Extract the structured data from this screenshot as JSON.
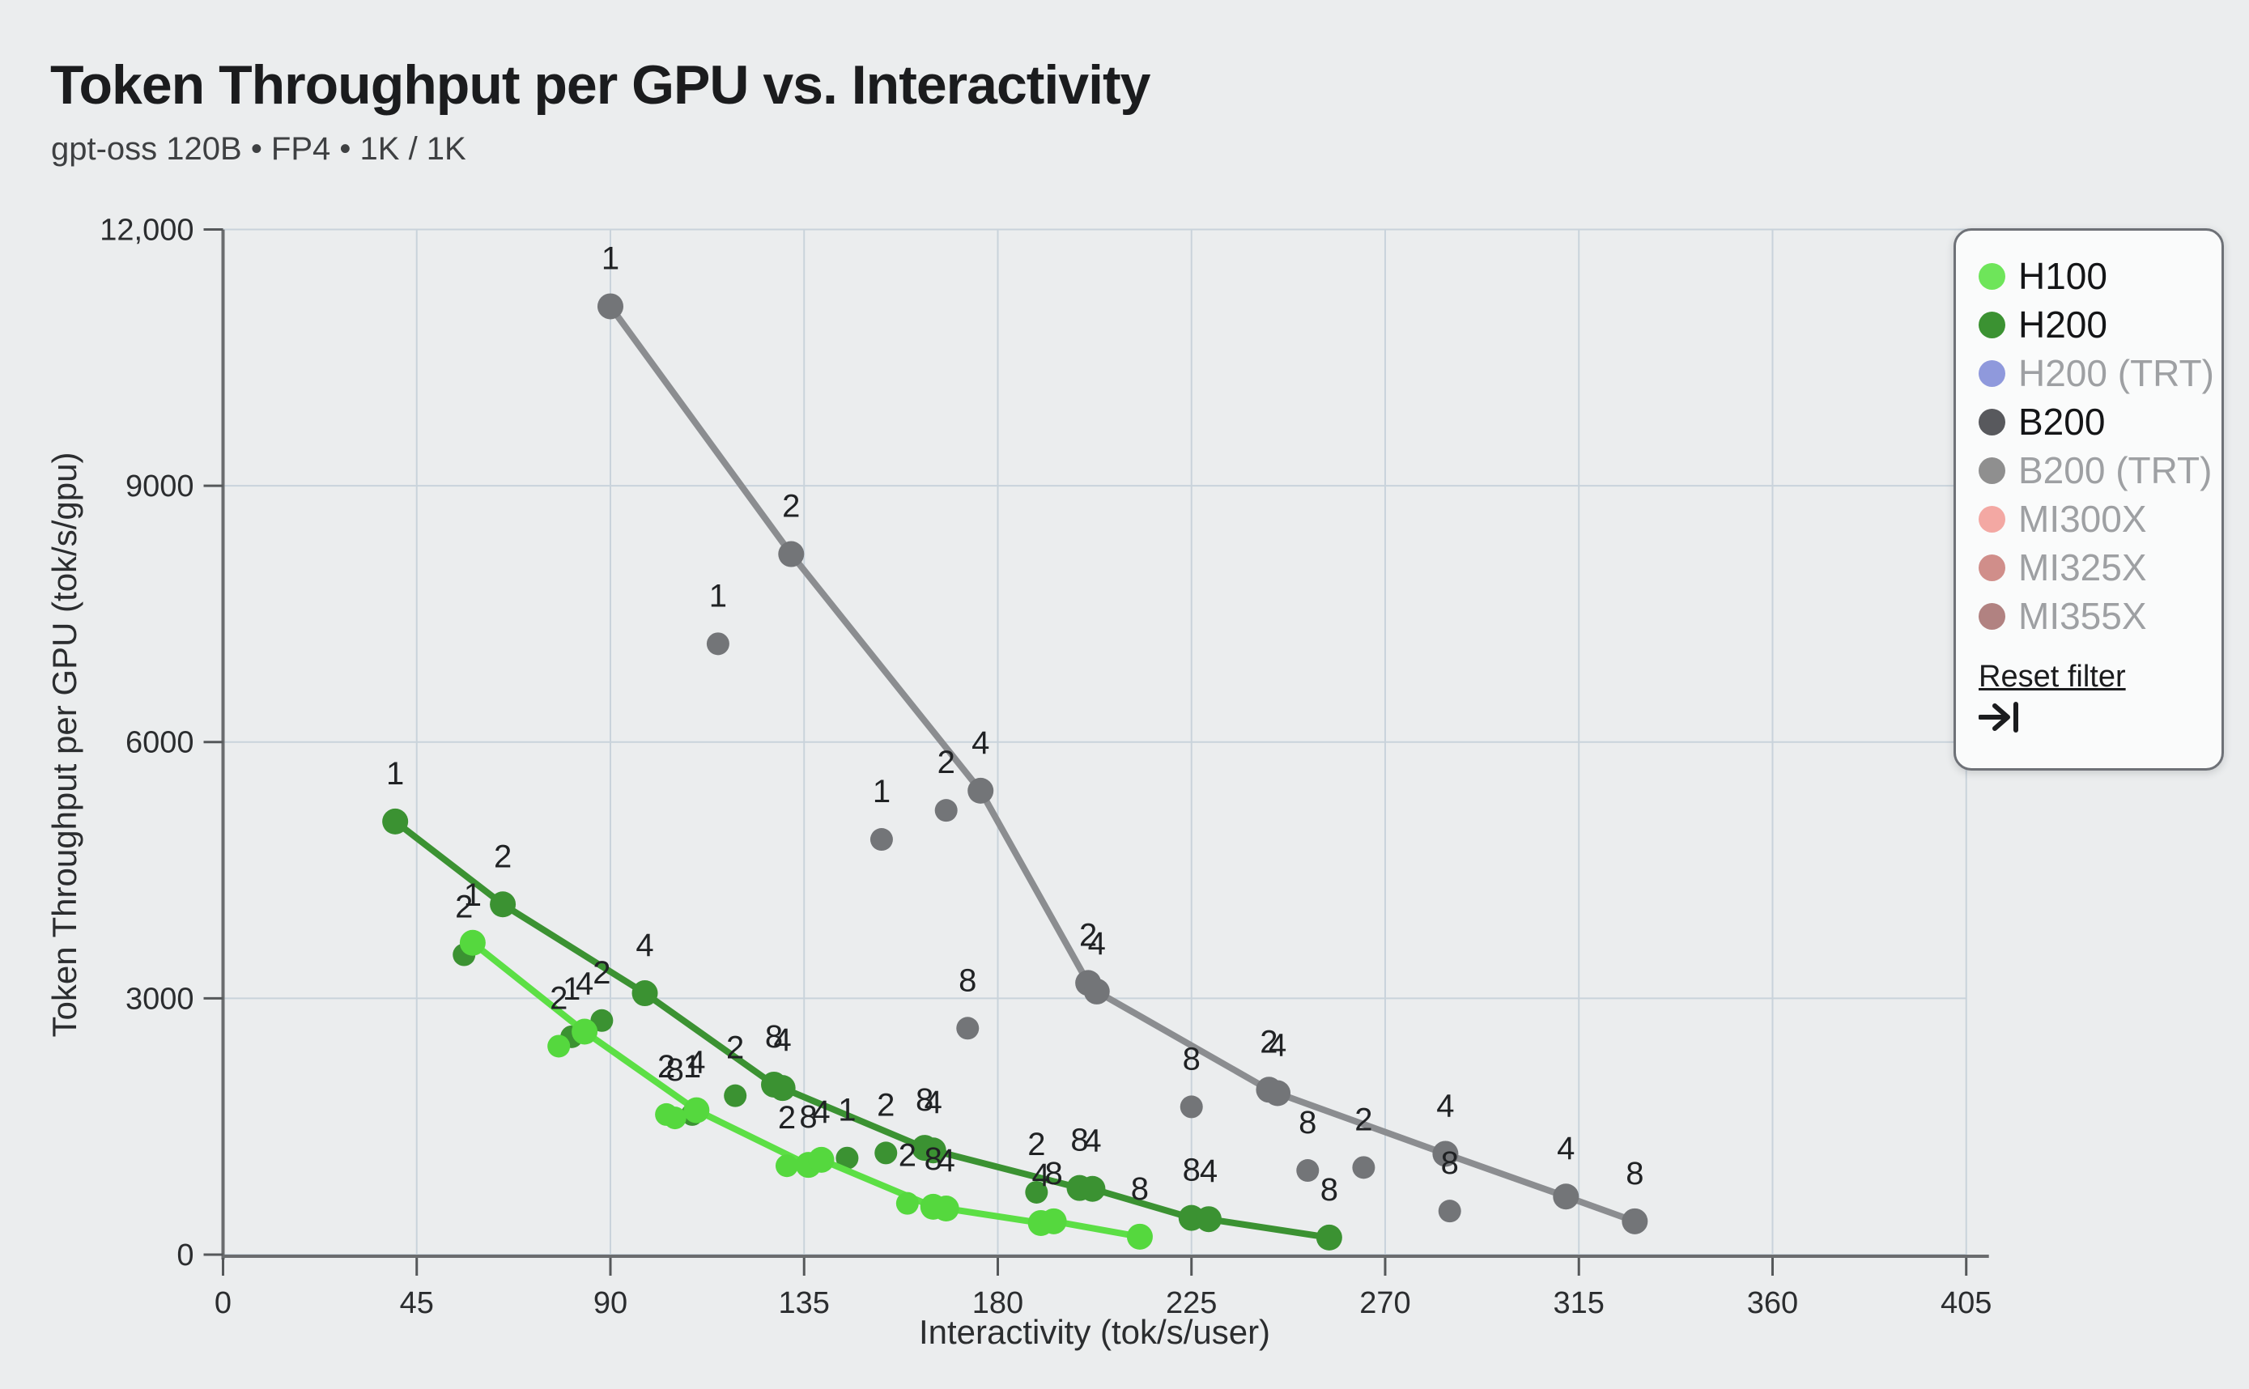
{
  "page": {
    "title": "Token Throughput per GPU vs. Interactivity",
    "subtitle": "gpt-oss 120B • FP4 • 1K / 1K",
    "background": "#ebedee"
  },
  "chart": {
    "x_axis": {
      "label": "Interactivity (tok/s/user)",
      "min": 0,
      "max": 405,
      "step": 45,
      "tick_labels": [
        "0",
        "45",
        "90",
        "135",
        "180",
        "225",
        "270",
        "315",
        "360",
        "405"
      ]
    },
    "y_axis": {
      "label": "Token Throughput per GPU (tok/s/gpu)",
      "min": 0,
      "max": 12000,
      "step": 3000,
      "tick_labels": [
        "0",
        "3000",
        "6000",
        "9000",
        "12,000"
      ]
    },
    "grid_color": "#c9d3db",
    "axis_color": "#6a6c6e",
    "tick_color": "#55585a",
    "tick_label_color": "#2b2d2f",
    "point_label_color": "#202224"
  },
  "chart_data": {
    "type": "scatter",
    "note": "point labels are GPU count per config; points with line=1 lie on the series frontier line",
    "series": [
      {
        "name": "B200",
        "line_color": "#8b8d90",
        "dot_color": "#737578",
        "points": [
          {
            "x": 90,
            "y": 11100,
            "l": "1",
            "line": 1
          },
          {
            "x": 132,
            "y": 8200,
            "l": "2",
            "line": 1
          },
          {
            "x": 176,
            "y": 5430,
            "l": "4",
            "line": 1
          },
          {
            "x": 201,
            "y": 3180,
            "l": "2",
            "line": 1
          },
          {
            "x": 203,
            "y": 3080,
            "l": "4",
            "line": 1
          },
          {
            "x": 243,
            "y": 1930,
            "l": "2",
            "line": 1
          },
          {
            "x": 245,
            "y": 1890,
            "l": "4",
            "line": 1
          },
          {
            "x": 284,
            "y": 1180,
            "l": "4",
            "line": 1
          },
          {
            "x": 312,
            "y": 680,
            "l": "4",
            "line": 1
          },
          {
            "x": 328,
            "y": 390,
            "l": "8",
            "line": 1
          },
          {
            "x": 115,
            "y": 7150,
            "l": "1",
            "line": 0
          },
          {
            "x": 153,
            "y": 4860,
            "l": "1",
            "line": 0
          },
          {
            "x": 168,
            "y": 5200,
            "l": "2",
            "line": 0
          },
          {
            "x": 173,
            "y": 2650,
            "l": "8",
            "line": 0
          },
          {
            "x": 225,
            "y": 1730,
            "l": "8",
            "line": 0
          },
          {
            "x": 252,
            "y": 985,
            "l": "8",
            "line": 0
          },
          {
            "x": 265,
            "y": 1020,
            "l": "2",
            "line": 0
          },
          {
            "x": 285,
            "y": 510,
            "l": "8",
            "line": 0
          }
        ]
      },
      {
        "name": "H200",
        "line_color": "#3b9232",
        "dot_color": "#3b9232",
        "points": [
          {
            "x": 40,
            "y": 5070,
            "l": "1",
            "line": 1
          },
          {
            "x": 65,
            "y": 4100,
            "l": "2",
            "line": 1
          },
          {
            "x": 98,
            "y": 3060,
            "l": "4",
            "line": 1
          },
          {
            "x": 128,
            "y": 1990,
            "l": "8",
            "line": 1
          },
          {
            "x": 130,
            "y": 1950,
            "l": "4",
            "line": 1
          },
          {
            "x": 163,
            "y": 1250,
            "l": "8",
            "line": 1
          },
          {
            "x": 165,
            "y": 1220,
            "l": "4",
            "line": 1
          },
          {
            "x": 199,
            "y": 780,
            "l": "8",
            "line": 1
          },
          {
            "x": 202,
            "y": 770,
            "l": "4",
            "line": 1
          },
          {
            "x": 225,
            "y": 430,
            "l": "8",
            "line": 1
          },
          {
            "x": 229,
            "y": 415,
            "l": "4",
            "line": 1
          },
          {
            "x": 257,
            "y": 200,
            "l": "8",
            "line": 1
          },
          {
            "x": 56,
            "y": 3510,
            "l": "2",
            "line": 0
          },
          {
            "x": 81,
            "y": 2550,
            "l": "1",
            "line": 0
          },
          {
            "x": 88,
            "y": 2740,
            "l": "2",
            "line": 0
          },
          {
            "x": 109,
            "y": 1640,
            "l": "1",
            "line": 0
          },
          {
            "x": 119,
            "y": 1860,
            "l": "2",
            "line": 0
          },
          {
            "x": 145,
            "y": 1130,
            "l": "1",
            "line": 0
          },
          {
            "x": 154,
            "y": 1190,
            "l": "2",
            "line": 0
          },
          {
            "x": 189,
            "y": 730,
            "l": "2",
            "line": 0
          }
        ]
      },
      {
        "name": "H100",
        "line_color": "#5cdf45",
        "dot_color": "#55d83e",
        "points": [
          {
            "x": 58,
            "y": 3650,
            "l": "1",
            "line": 1
          },
          {
            "x": 84,
            "y": 2610,
            "l": "4",
            "line": 1
          },
          {
            "x": 110,
            "y": 1690,
            "l": "4",
            "line": 1
          },
          {
            "x": 136,
            "y": 1050,
            "l": "8",
            "line": 1
          },
          {
            "x": 139,
            "y": 1110,
            "l": "4",
            "line": 1
          },
          {
            "x": 165,
            "y": 560,
            "l": "8",
            "line": 1
          },
          {
            "x": 168,
            "y": 540,
            "l": "4",
            "line": 1
          },
          {
            "x": 190,
            "y": 370,
            "l": "4",
            "line": 1
          },
          {
            "x": 193,
            "y": 390,
            "l": "8",
            "line": 1
          },
          {
            "x": 213,
            "y": 210,
            "l": "8",
            "line": 1
          },
          {
            "x": 78,
            "y": 2440,
            "l": "2",
            "line": 0
          },
          {
            "x": 103,
            "y": 1640,
            "l": "2",
            "line": 0
          },
          {
            "x": 105,
            "y": 1600,
            "l": "8",
            "line": 0
          },
          {
            "x": 131,
            "y": 1040,
            "l": "2",
            "line": 0
          },
          {
            "x": 159,
            "y": 600,
            "l": "2",
            "line": 0
          }
        ]
      }
    ]
  },
  "legend": {
    "items": [
      {
        "label": "H100",
        "color": "#6ee55a",
        "active": true
      },
      {
        "label": "H200",
        "color": "#3b9232",
        "active": true
      },
      {
        "label": "H200 (TRT)",
        "color": "#8f99dc",
        "active": false
      },
      {
        "label": "B200",
        "color": "#58595d",
        "active": true
      },
      {
        "label": "B200 (TRT)",
        "color": "#8f8f8f",
        "active": false
      },
      {
        "label": "MI300X",
        "color": "#f3a8a3",
        "active": false
      },
      {
        "label": "MI325X",
        "color": "#d08e8a",
        "active": false
      },
      {
        "label": "MI355X",
        "color": "#b18281",
        "active": false
      }
    ],
    "reset_label": "Reset filter",
    "icon": "arrow-bar-to-right-icon"
  }
}
